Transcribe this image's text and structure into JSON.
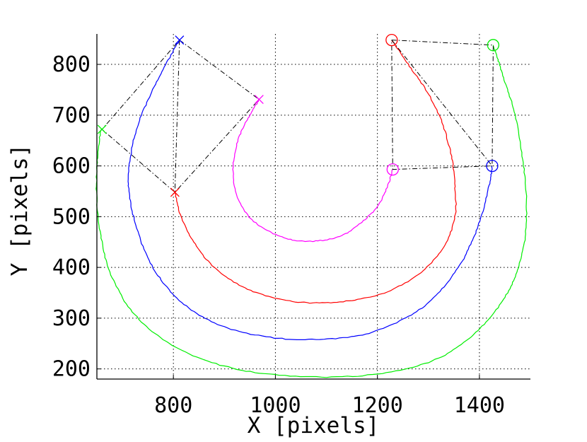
{
  "chart_data": {
    "type": "line",
    "title": "",
    "xlabel": "X [pixels]",
    "ylabel": "Y [pixels]",
    "xlim": [
      650,
      1500
    ],
    "ylim": [
      180,
      860
    ],
    "xticks": [
      800,
      1000,
      1200,
      1400
    ],
    "yticks": [
      200,
      300,
      400,
      500,
      600,
      700,
      800
    ],
    "grid": true,
    "grid_style": "dotted",
    "colors": {
      "green": "#00ee00",
      "blue": "#0000ff",
      "red": "#ff0000",
      "magenta": "#ff00ff",
      "dashed": "#000000"
    },
    "series": [
      {
        "color": "green",
        "points": [
          [
            1427,
            838
          ],
          [
            1436,
            810
          ],
          [
            1452,
            760
          ],
          [
            1470,
            700
          ],
          [
            1484,
            620
          ],
          [
            1492,
            540
          ],
          [
            1490,
            460
          ],
          [
            1476,
            400
          ],
          [
            1455,
            350
          ],
          [
            1420,
            300
          ],
          [
            1370,
            252
          ],
          [
            1300,
            213
          ],
          [
            1200,
            190
          ],
          [
            1080,
            184
          ],
          [
            960,
            193
          ],
          [
            860,
            218
          ],
          [
            780,
            258
          ],
          [
            720,
            312
          ],
          [
            680,
            380
          ],
          [
            660,
            450
          ],
          [
            650,
            530
          ],
          [
            650,
            600
          ],
          [
            656,
            660
          ],
          [
            660,
            672
          ]
        ]
      },
      {
        "color": "blue",
        "points": [
          [
            1425,
            600
          ],
          [
            1420,
            565
          ],
          [
            1405,
            505
          ],
          [
            1385,
            450
          ],
          [
            1355,
            395
          ],
          [
            1310,
            340
          ],
          [
            1250,
            297
          ],
          [
            1170,
            267
          ],
          [
            1080,
            258
          ],
          [
            990,
            262
          ],
          [
            900,
            283
          ],
          [
            830,
            320
          ],
          [
            780,
            370
          ],
          [
            745,
            430
          ],
          [
            722,
            500
          ],
          [
            712,
            560
          ],
          [
            716,
            620
          ],
          [
            730,
            680
          ],
          [
            755,
            740
          ],
          [
            785,
            800
          ],
          [
            812,
            848
          ]
        ]
      },
      {
        "color": "red",
        "points": [
          [
            803,
            548
          ],
          [
            815,
            500
          ],
          [
            840,
            450
          ],
          [
            880,
            400
          ],
          [
            940,
            360
          ],
          [
            1010,
            337
          ],
          [
            1080,
            330
          ],
          [
            1150,
            335
          ],
          [
            1220,
            352
          ],
          [
            1285,
            390
          ],
          [
            1330,
            440
          ],
          [
            1352,
            500
          ],
          [
            1352,
            560
          ],
          [
            1345,
            620
          ],
          [
            1325,
            690
          ],
          [
            1295,
            750
          ],
          [
            1260,
            800
          ],
          [
            1228,
            848
          ]
        ]
      },
      {
        "color": "magenta",
        "points": [
          [
            1230,
            593
          ],
          [
            1220,
            560
          ],
          [
            1200,
            520
          ],
          [
            1170,
            490
          ],
          [
            1130,
            463
          ],
          [
            1080,
            452
          ],
          [
            1030,
            455
          ],
          [
            980,
            475
          ],
          [
            940,
            510
          ],
          [
            920,
            560
          ],
          [
            918,
            610
          ],
          [
            930,
            660
          ],
          [
            950,
            700
          ],
          [
            968,
            731
          ]
        ]
      }
    ],
    "x_markers": [
      {
        "color": "blue",
        "x": 812,
        "y": 848
      },
      {
        "color": "magenta",
        "x": 968,
        "y": 731
      },
      {
        "color": "green",
        "x": 660,
        "y": 672
      },
      {
        "color": "red",
        "x": 803,
        "y": 548
      }
    ],
    "o_markers": [
      {
        "color": "red",
        "x": 1228,
        "y": 848
      },
      {
        "color": "green",
        "x": 1427,
        "y": 838
      },
      {
        "color": "magenta",
        "x": 1230,
        "y": 593
      },
      {
        "color": "blue",
        "x": 1425,
        "y": 600
      }
    ],
    "dash_lines": [
      {
        "color": "dashed",
        "points": [
          [
            812,
            848
          ],
          [
            968,
            731
          ],
          [
            803,
            548
          ],
          [
            660,
            672
          ],
          [
            812,
            848
          ]
        ]
      },
      {
        "color": "dashed",
        "points": [
          [
            812,
            848
          ],
          [
            803,
            548
          ]
        ]
      },
      {
        "color": "dashed",
        "points": [
          [
            1228,
            848
          ],
          [
            1427,
            838
          ],
          [
            1425,
            600
          ],
          [
            1230,
            593
          ],
          [
            1228,
            848
          ]
        ]
      },
      {
        "color": "dashed",
        "points": [
          [
            1228,
            848
          ],
          [
            1425,
            600
          ]
        ]
      }
    ]
  }
}
